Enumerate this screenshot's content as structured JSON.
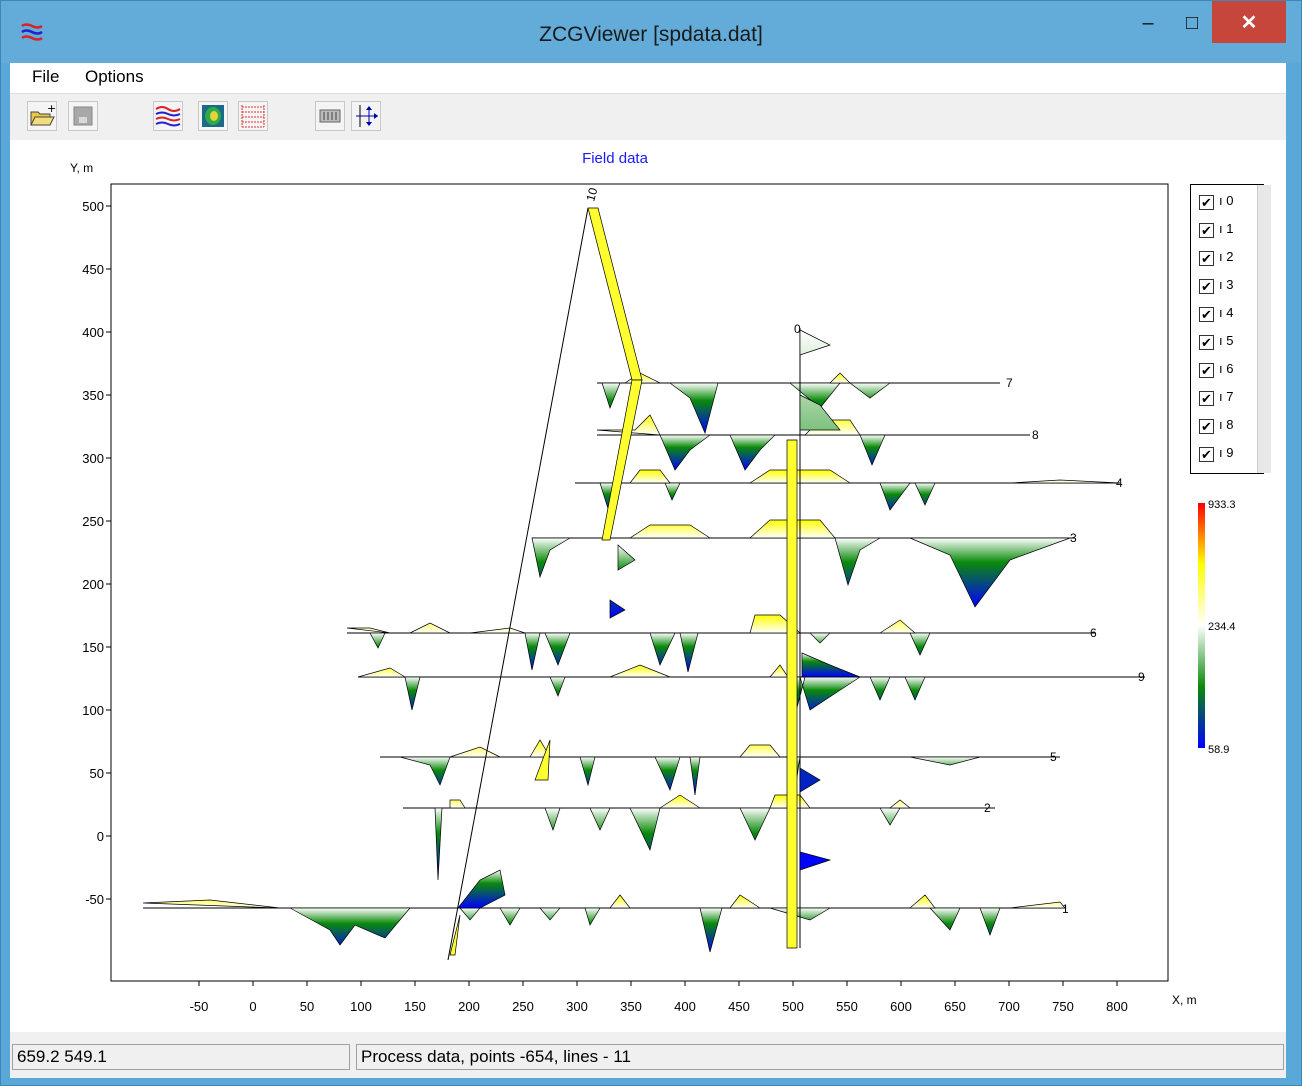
{
  "window": {
    "title": "ZCGViewer [spdata.dat]",
    "minimize": "–",
    "maximize": "□",
    "close": "✕"
  },
  "menu": {
    "file": "File",
    "options": "Options"
  },
  "toolbar": {
    "icons": [
      "open-icon",
      "save-icon",
      "profiles-icon",
      "map-icon",
      "grid-icon",
      "settings-icon",
      "axes-icon"
    ]
  },
  "plot": {
    "title": "Field data",
    "ylabel": "Y, m",
    "xlabel": "X, m",
    "xticks": [
      "-50",
      "0",
      "50",
      "100",
      "150",
      "200",
      "250",
      "300",
      "350",
      "400",
      "450",
      "500",
      "550",
      "600",
      "650",
      "700",
      "750",
      "800"
    ],
    "yticks": [
      "500",
      "450",
      "400",
      "350",
      "300",
      "250",
      "200",
      "150",
      "100",
      "50",
      "0",
      "-50"
    ]
  },
  "legend": {
    "items": [
      {
        "label": "ı 0",
        "checked": true
      },
      {
        "label": "ı 1",
        "checked": true
      },
      {
        "label": "ı 2",
        "checked": true
      },
      {
        "label": "ı 3",
        "checked": true
      },
      {
        "label": "ı 4",
        "checked": true
      },
      {
        "label": "ı 5",
        "checked": true
      },
      {
        "label": "ı 6",
        "checked": true
      },
      {
        "label": "ı 7",
        "checked": true
      },
      {
        "label": "ı 8",
        "checked": true
      },
      {
        "label": "ı 9",
        "checked": true
      }
    ]
  },
  "colorbar": {
    "max": "933.3",
    "mid": "234.4",
    "min": "58.9",
    "colors": [
      "#ff0000",
      "#ffff00",
      "#ffffff",
      "#0a8a0a",
      "#0000ff"
    ]
  },
  "profile_labels": [
    "7",
    "8",
    "4",
    "3",
    "6",
    "9",
    "5",
    "2",
    "1",
    "10",
    "0"
  ],
  "status": {
    "coords": "659.2 549.1",
    "message": "Process data,  points -654, lines - 11"
  }
}
